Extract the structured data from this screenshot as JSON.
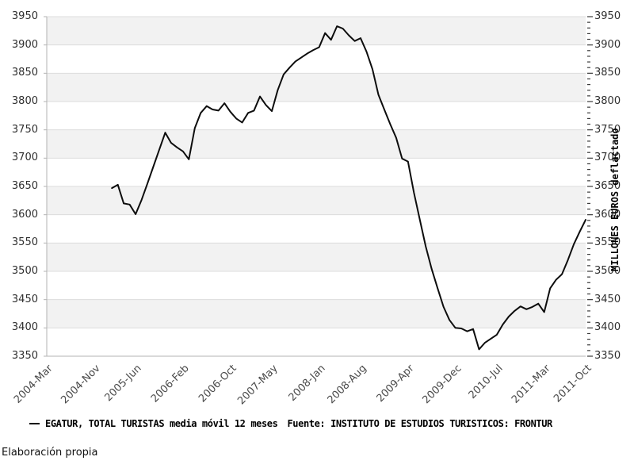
{
  "page": {
    "title": "",
    "footer": "Elaboración propia",
    "background_color": "#ffffff"
  },
  "legend": {
    "marker": "line-dash",
    "series_label": "EGATUR, TOTAL TURISTAS media móvil 12 meses",
    "source_label": "Fuente: INSTITUTO DE ESTUDIOS TURISTICOS: FRONTUR",
    "color": "#000000",
    "position": "bottom"
  },
  "chart_data": {
    "type": "line",
    "title": "",
    "xlabel": "",
    "ylabel_right": "MILLONES EUROS deflactado",
    "grid": true,
    "alternating_bands": true,
    "plot_colors": {
      "band_color": "#f2f2f2",
      "grid_color": "#dcdcdc",
      "axis_color": "#b3b3b3",
      "tick_color": "#3a3a3a",
      "line_color": "#0d0d0d"
    },
    "y_axis": {
      "min": 3350,
      "max": 3950,
      "major_step": 50,
      "minor_step": 10,
      "tick_labels": [
        3950,
        3900,
        3850,
        3800,
        3750,
        3700,
        3650,
        3600,
        3550,
        3500,
        3450,
        3400,
        3350
      ]
    },
    "x_axis": {
      "start": "2004-Mar",
      "end": "2011-Oct",
      "total_points": 92,
      "tick_labels": [
        {
          "label": "2004-Mar",
          "month_index": 0
        },
        {
          "label": "2004-Nov",
          "month_index": 8
        },
        {
          "label": "2005-Jun",
          "month_index": 15
        },
        {
          "label": "2006-Feb",
          "month_index": 23
        },
        {
          "label": "2006-Oct",
          "month_index": 31
        },
        {
          "label": "2007-May",
          "month_index": 38
        },
        {
          "label": "2008-Jan",
          "month_index": 46
        },
        {
          "label": "2008-Aug",
          "month_index": 53
        },
        {
          "label": "2009-Apr",
          "month_index": 61
        },
        {
          "label": "2009-Dec",
          "month_index": 69
        },
        {
          "label": "2010-Jul",
          "month_index": 76
        },
        {
          "label": "2011-Mar",
          "month_index": 84
        },
        {
          "label": "2011-Oct",
          "month_index": 91
        }
      ]
    },
    "series": [
      {
        "name": "EGATUR, TOTAL TURISTAS media móvil 12 meses",
        "color": "#000000",
        "cadence": "monthly",
        "start_month": "2005-Feb",
        "start_month_index": 11,
        "values": [
          3647,
          3653,
          3620,
          3618,
          3601,
          3626,
          3655,
          3685,
          3715,
          3745,
          3727,
          3719,
          3712,
          3698,
          3753,
          3780,
          3792,
          3786,
          3784,
          3797,
          3782,
          3770,
          3763,
          3780,
          3784,
          3809,
          3794,
          3783,
          3820,
          3848,
          3860,
          3871,
          3878,
          3885,
          3891,
          3896,
          3921,
          3909,
          3933,
          3929,
          3917,
          3907,
          3912,
          3888,
          3857,
          3812,
          3786,
          3760,
          3736,
          3699,
          3694,
          3639,
          3591,
          3544,
          3504,
          3470,
          3437,
          3414,
          3400,
          3399,
          3394,
          3398,
          3362,
          3374,
          3381,
          3388,
          3406,
          3420,
          3430,
          3438,
          3433,
          3437,
          3443,
          3428,
          3470,
          3485,
          3495,
          3520,
          3548,
          3570,
          3591
        ]
      }
    ]
  }
}
